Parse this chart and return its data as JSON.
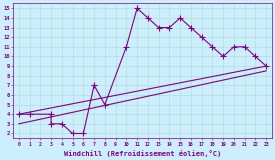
{
  "xlabel": "Windchill (Refroidissement éolien,°C)",
  "bg_color": "#cceeff",
  "line_color": "#800080",
  "grid_color": "#aaddcc",
  "xlim": [
    -0.5,
    23.5
  ],
  "ylim": [
    1.5,
    15.5
  ],
  "xticks": [
    0,
    1,
    2,
    3,
    4,
    5,
    6,
    7,
    8,
    9,
    10,
    11,
    12,
    13,
    14,
    15,
    16,
    17,
    18,
    19,
    20,
    21,
    22,
    23
  ],
  "yticks": [
    2,
    3,
    4,
    5,
    6,
    7,
    8,
    9,
    10,
    11,
    12,
    13,
    14,
    15
  ],
  "line1_x": [
    0,
    1,
    3,
    3,
    4,
    5,
    6,
    7,
    8,
    10,
    11,
    12,
    13,
    14,
    15,
    16,
    17,
    18,
    19,
    20,
    21,
    22,
    23
  ],
  "line1_y": [
    4,
    4,
    4,
    3,
    3,
    2,
    2,
    7,
    5,
    11,
    15,
    14,
    13,
    13,
    14,
    13,
    12,
    11,
    10,
    11,
    11,
    10,
    9
  ],
  "line2_x": [
    0,
    23
  ],
  "line2_y": [
    4,
    9
  ],
  "line3_x": [
    0,
    23
  ],
  "line3_y": [
    3,
    8.5
  ],
  "marker": "+",
  "markersize": 4,
  "linewidth": 0.8
}
